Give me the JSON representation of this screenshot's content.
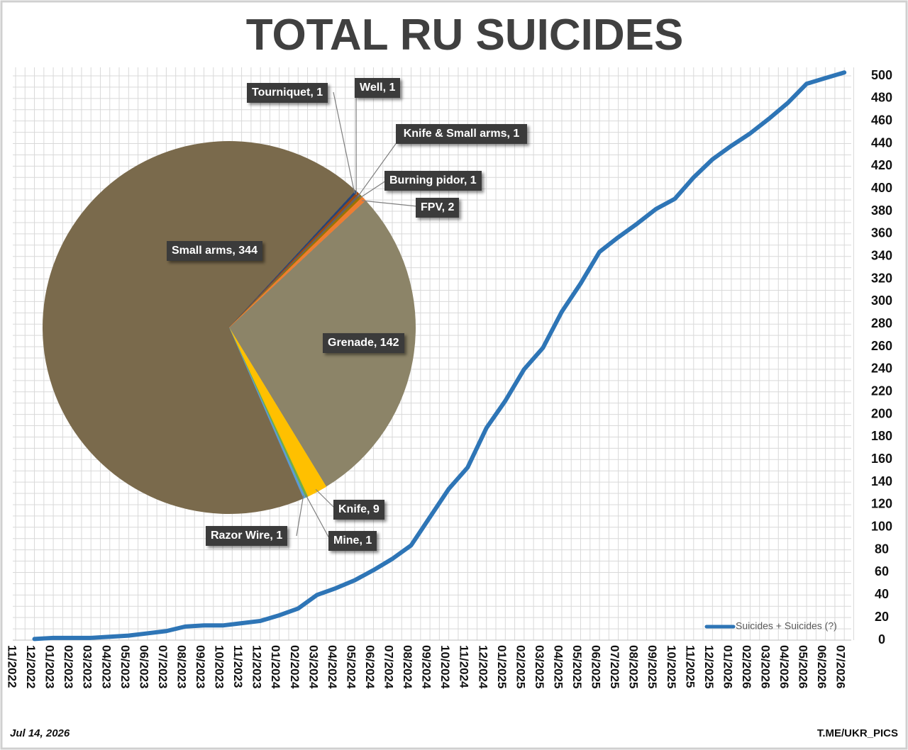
{
  "chart_data": [
    {
      "type": "line",
      "title": "TOTAL RU SUICIDES",
      "categories": [
        "11/2022",
        "12/2022",
        "01/2023",
        "02/2023",
        "03/2023",
        "04/2023",
        "05/2023",
        "06/2023",
        "07/2023",
        "08/2023",
        "09/2023",
        "10/2023",
        "11/2023",
        "12/2023",
        "01/2024",
        "02/2024",
        "03/2024",
        "04/2024",
        "05/2024",
        "06/2024",
        "07/2024",
        "08/2024",
        "09/2024",
        "10/2024",
        "11/2024",
        "12/2024",
        "01/2025",
        "02/2025",
        "03/2025",
        "04/2025",
        "05/2025",
        "06/2025",
        "07/2025",
        "08/2025",
        "09/2025",
        "10/2025",
        "11/2025",
        "12/2025",
        "01/2026",
        "02/2026",
        "03/2026",
        "04/2026",
        "05/2026",
        "06/2026",
        "07/2026"
      ],
      "series": [
        {
          "name": "Suicides + Suicides (?)",
          "color": "#2e75b6",
          "values": [
            null,
            1,
            2,
            2,
            2,
            3,
            4,
            6,
            8,
            12,
            13,
            13,
            15,
            17,
            22,
            28,
            40,
            46,
            53,
            62,
            72,
            84,
            109,
            134,
            153,
            188,
            212,
            240,
            259,
            291,
            316,
            344,
            357,
            369,
            382,
            391,
            410,
            426,
            438,
            449,
            462,
            476,
            493,
            498,
            503
          ]
        }
      ],
      "ylim": [
        0,
        500
      ],
      "yticks": [
        0,
        20,
        40,
        60,
        80,
        100,
        120,
        140,
        160,
        180,
        200,
        220,
        240,
        260,
        280,
        300,
        320,
        340,
        360,
        380,
        400,
        420,
        440,
        460,
        480,
        500
      ],
      "grid": true,
      "legend": "bottom-right"
    },
    {
      "type": "pie",
      "value_labels": [
        "Grenade, 142",
        "Knife, 9",
        "Mine, 1",
        "Razor Wire, 1",
        "Small arms, 344",
        "Tourniquet, 1",
        "Well, 1",
        "Knife & Small arms, 1",
        "Burning pidor, 1",
        "FPV, 2"
      ],
      "values": [
        142,
        9,
        1,
        1,
        344,
        1,
        1,
        1,
        1,
        2
      ],
      "colors": [
        "#8c8468",
        "#ffc000",
        "#70ad47",
        "#5b9bd5",
        "#7a6a4c",
        "#264478",
        "#9e480e",
        "#636363",
        "#997300",
        "#ed7d31"
      ]
    }
  ],
  "footer": {
    "date": "Jul 14, 2026",
    "source": "T.ME/UKR_PICS"
  }
}
